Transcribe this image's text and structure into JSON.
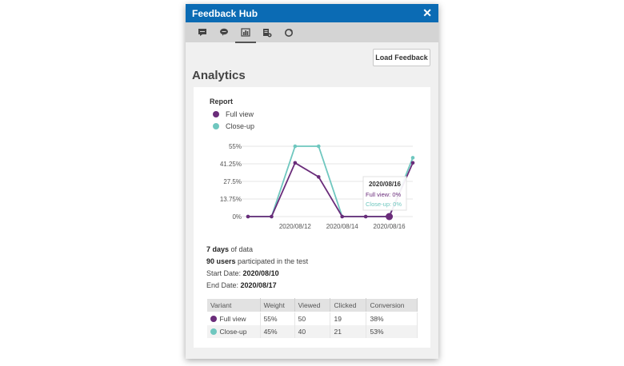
{
  "window": {
    "title": "Feedback Hub",
    "close_symbol": "✕"
  },
  "toolbar": {
    "icons": [
      "feedback-icon",
      "comment-icon",
      "analytics-icon",
      "report-settings-icon",
      "refresh-icon"
    ],
    "active": "analytics-icon"
  },
  "load_button": "Load Feedback",
  "heading": "Analytics",
  "report": {
    "title": "Report"
  },
  "colors": {
    "full_view": "#6a2c7a",
    "close_up": "#6fc7bf",
    "titlebar": "#0b6bb4"
  },
  "chart_data": {
    "type": "line",
    "x": [
      "2020/08/10",
      "2020/08/11",
      "2020/08/12",
      "2020/08/13",
      "2020/08/14",
      "2020/08/15",
      "2020/08/16",
      "2020/08/17"
    ],
    "x_tick_labels": [
      "2020/08/12",
      "2020/08/14",
      "2020/08/16"
    ],
    "y_tick_labels": [
      "55%",
      "41.25%",
      "27.5%",
      "13.75%",
      "0%"
    ],
    "ylim": [
      0,
      55
    ],
    "grid": true,
    "legend_position": "top-left",
    "series": [
      {
        "name": "Full view",
        "values": [
          0,
          0,
          42,
          31,
          0,
          0,
          0,
          42
        ]
      },
      {
        "name": "Close-up",
        "values": [
          0,
          0,
          55,
          55,
          0,
          0,
          0,
          46
        ]
      }
    ],
    "tooltip": {
      "date": "2020/08/16",
      "full_view": "Full view: 0%",
      "close_up": "Close-up: 0%"
    }
  },
  "stats": {
    "days_bold": "7 days",
    "days_rest": " of data",
    "users_bold": "90 users",
    "users_rest": " participated in the test",
    "start_label": "Start Date: ",
    "start_value": "2020/08/10",
    "end_label": "End Date: ",
    "end_value": "2020/08/17"
  },
  "table": {
    "headers": [
      "Variant",
      "Weight",
      "Viewed",
      "Clicked",
      "Conversion"
    ],
    "rows": [
      {
        "variant": "Full view",
        "weight": "55%",
        "viewed": "50",
        "clicked": "19",
        "conversion": "38%"
      },
      {
        "variant": "Close-up",
        "weight": "45%",
        "viewed": "40",
        "clicked": "21",
        "conversion": "53%"
      }
    ]
  }
}
